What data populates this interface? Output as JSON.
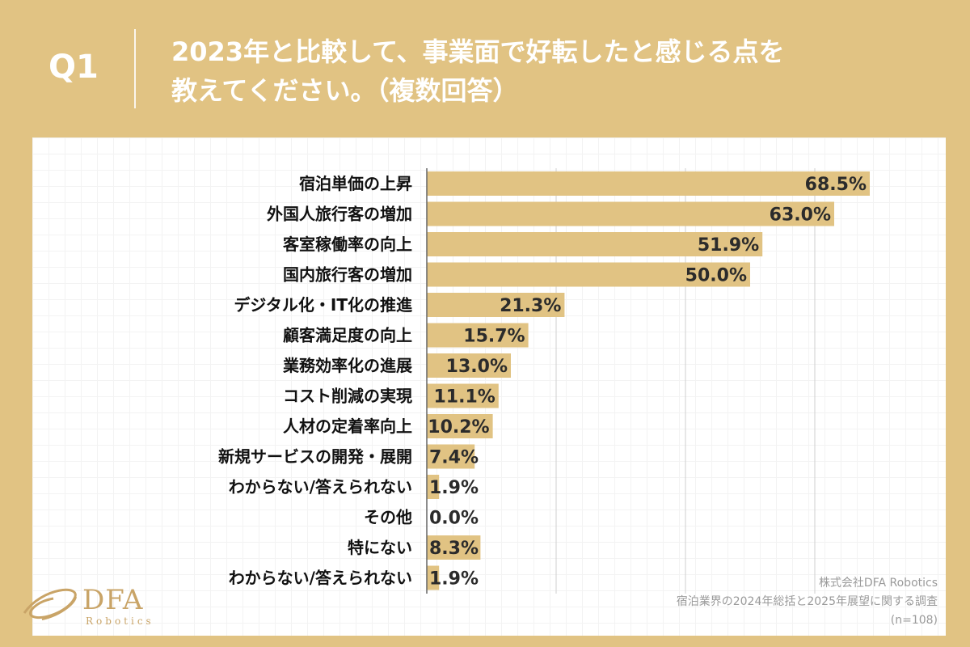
{
  "header": {
    "q_label": "Q1",
    "question_line1": "2023年と比較して、事業面で好転したと感じる点を",
    "question_line2": "教えてください。（複数回答）"
  },
  "chart_data": {
    "type": "bar",
    "orientation": "horizontal",
    "categories": [
      "宿泊単価の上昇",
      "外国人旅行客の増加",
      "客室稼働率の向上",
      "国内旅行客の増加",
      "デジタル化・IT化の推進",
      "顧客満足度の向上",
      "業務効率化の進展",
      "コスト削減の実現",
      "人材の定着率向上",
      "新規サービスの開発・展開",
      "わからない/答えられない",
      "その他",
      "特にない",
      "わからない/答えられない"
    ],
    "values": [
      68.5,
      63.0,
      51.9,
      50.0,
      21.3,
      15.7,
      13.0,
      11.1,
      10.2,
      7.4,
      1.9,
      0.0,
      8.3,
      1.9
    ],
    "value_labels": [
      "68.5%",
      "63.0%",
      "51.9%",
      "50.0%",
      "21.3%",
      "15.7%",
      "13.0%",
      "11.1%",
      "10.2%",
      "7.4%",
      "1.9%",
      "0.0%",
      "8.3%",
      "1.9%"
    ],
    "xlim": [
      0,
      70
    ],
    "grid": true,
    "bar_color": "#e1c383"
  },
  "footer": {
    "logo_text": "DFA",
    "logo_sub": "Robotics",
    "source_line1": "株式会社DFA Robotics",
    "source_line2": "宿泊業界の2024年総括と2025年展望に関する調査",
    "source_line3": "(n=108)"
  }
}
